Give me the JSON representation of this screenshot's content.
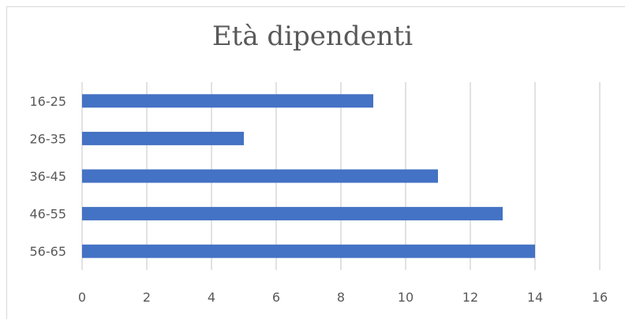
{
  "chart_data": {
    "type": "bar",
    "orientation": "horizontal",
    "title": "Età dipendenti",
    "categories": [
      "16-25",
      "26-35",
      "36-45",
      "46-55",
      "56-65"
    ],
    "values": [
      9,
      5,
      11,
      13,
      14
    ],
    "xlim": [
      0,
      16
    ],
    "xticks": [
      0,
      2,
      4,
      6,
      8,
      10,
      12,
      14,
      16
    ],
    "grid": true,
    "bar_color": "#4472c4",
    "grid_color": "#d9d9d9",
    "text_color": "#595959"
  }
}
